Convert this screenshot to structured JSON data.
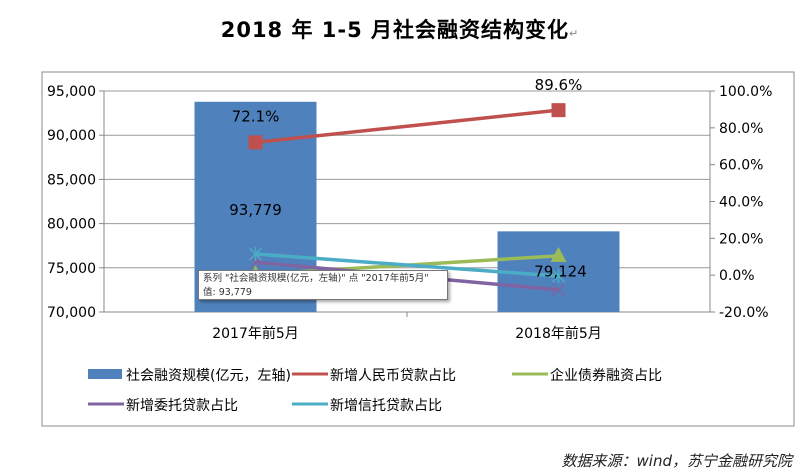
{
  "title": "2018 年 1-5 月社会融资结构变化",
  "title_mark": "↵",
  "source": "数据来源：wind，苏宁金融研究院",
  "tooltip": {
    "line1": "系列 \"社会融资规模(亿元，左轴)\" 点 \"2017年前5月\"",
    "line2": "值: 93,779"
  },
  "chart_data": {
    "type": "bar+line",
    "categories": [
      "2017年前5月",
      "2018年前5月"
    ],
    "left_axis": {
      "ylim": [
        70000,
        95000
      ],
      "ticks": [
        "70,000",
        "75,000",
        "80,000",
        "85,000",
        "90,000",
        "95,000"
      ]
    },
    "right_axis": {
      "ylim": [
        -20,
        100
      ],
      "ticks": [
        "-20.0%",
        "0.0%",
        "20.0%",
        "40.0%",
        "60.0%",
        "80.0%",
        "100.0%"
      ]
    },
    "grid": true,
    "legend_placement": "bottom",
    "series": [
      {
        "name": "社会融资规模(亿元，左轴)",
        "type": "bar",
        "axis": "left",
        "values": [
          93779,
          79124
        ],
        "labels": [
          "93,779",
          "79,124"
        ],
        "color": "#4f81bd"
      },
      {
        "name": "新增人民币贷款占比",
        "type": "line",
        "axis": "right",
        "values": [
          72.1,
          89.6
        ],
        "labels": [
          "72.1%",
          "89.6%"
        ],
        "color": "#c0504d",
        "marker": "square"
      },
      {
        "name": "企业债券融资占比",
        "type": "line",
        "axis": "right",
        "values": [
          0.4,
          10.5
        ],
        "color": "#9bbb59",
        "marker": "triangle"
      },
      {
        "name": "新增委托贷款占比",
        "type": "line",
        "axis": "right",
        "values": [
          7,
          -8
        ],
        "color": "#8064a2",
        "marker": "x"
      },
      {
        "name": "新增信托贷款占比",
        "type": "line",
        "axis": "right",
        "values": [
          11.5,
          -0.5
        ],
        "color": "#4bacc6",
        "marker": "star"
      }
    ]
  }
}
